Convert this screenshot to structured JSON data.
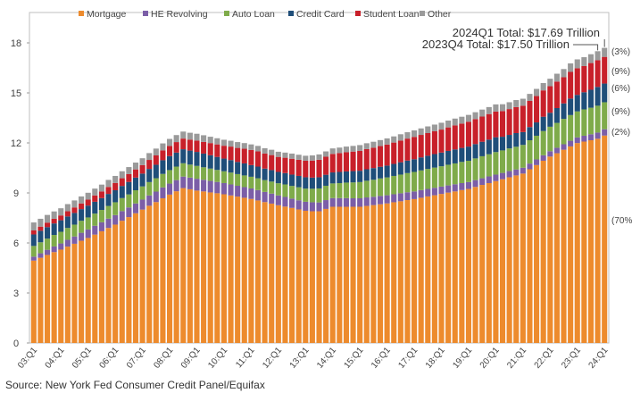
{
  "chart_data": {
    "type": "bar",
    "stacked": true,
    "title": "",
    "xlabel": "",
    "ylabel": "",
    "ylim": [
      0,
      18
    ],
    "yticks": [
      0,
      3,
      6,
      9,
      12,
      15,
      18
    ],
    "grid": false,
    "legend": "top",
    "x_tick_labels": [
      "03:Q1",
      "04:Q1",
      "05:Q1",
      "06:Q1",
      "07:Q1",
      "08:Q1",
      "09:Q1",
      "10:Q1",
      "11:Q1",
      "12:Q1",
      "13:Q1",
      "14:Q1",
      "15:Q1",
      "16:Q1",
      "17:Q1",
      "18:Q1",
      "19:Q1",
      "20:Q1",
      "21:Q1",
      "22:Q1",
      "23:Q1",
      "24:Q1"
    ],
    "quarters_start": "03:Q1",
    "series": [
      {
        "name": "Mortgage",
        "color": "#ed8b2d",
        "share_label": "(70%)",
        "values": [
          4.94,
          5.11,
          5.28,
          5.45,
          5.6,
          5.78,
          5.95,
          6.13,
          6.3,
          6.5,
          6.7,
          6.9,
          7.1,
          7.33,
          7.55,
          7.78,
          8.0,
          8.23,
          8.45,
          8.68,
          8.9,
          9.1,
          9.29,
          9.22,
          9.14,
          9.09,
          9.03,
          8.98,
          8.92,
          8.85,
          8.78,
          8.71,
          8.64,
          8.55,
          8.45,
          8.36,
          8.26,
          8.18,
          8.1,
          8.01,
          7.93,
          7.9,
          7.9,
          8.04,
          8.17,
          8.17,
          8.17,
          8.17,
          8.17,
          8.22,
          8.27,
          8.32,
          8.37,
          8.44,
          8.5,
          8.57,
          8.63,
          8.71,
          8.79,
          8.86,
          8.94,
          9.02,
          9.09,
          9.17,
          9.24,
          9.36,
          9.48,
          9.59,
          9.71,
          9.82,
          9.94,
          10.05,
          10.16,
          10.42,
          10.67,
          10.93,
          11.18,
          11.38,
          11.59,
          11.79,
          11.99,
          12.08,
          12.16,
          12.25,
          12.44
        ]
      },
      {
        "name": "HE Revolving",
        "color": "#7b5ea7",
        "share_label": "(2%)",
        "values": [
          0.24,
          0.27,
          0.31,
          0.34,
          0.37,
          0.41,
          0.44,
          0.48,
          0.51,
          0.53,
          0.54,
          0.56,
          0.57,
          0.58,
          0.58,
          0.59,
          0.6,
          0.62,
          0.63,
          0.65,
          0.66,
          0.67,
          0.69,
          0.7,
          0.71,
          0.7,
          0.69,
          0.68,
          0.67,
          0.66,
          0.65,
          0.64,
          0.63,
          0.62,
          0.61,
          0.6,
          0.59,
          0.58,
          0.56,
          0.55,
          0.54,
          0.54,
          0.53,
          0.53,
          0.52,
          0.52,
          0.52,
          0.51,
          0.51,
          0.51,
          0.5,
          0.5,
          0.49,
          0.48,
          0.48,
          0.47,
          0.46,
          0.46,
          0.45,
          0.45,
          0.44,
          0.43,
          0.43,
          0.42,
          0.41,
          0.41,
          0.4,
          0.4,
          0.39,
          0.38,
          0.37,
          0.36,
          0.35,
          0.34,
          0.34,
          0.33,
          0.32,
          0.33,
          0.33,
          0.34,
          0.34,
          0.35,
          0.36,
          0.37,
          0.38
        ]
      },
      {
        "name": "Auto Loan",
        "color": "#7fab4a",
        "share_label": "(9%)",
        "values": [
          0.64,
          0.66,
          0.67,
          0.69,
          0.7,
          0.71,
          0.71,
          0.72,
          0.72,
          0.73,
          0.74,
          0.76,
          0.77,
          0.78,
          0.78,
          0.79,
          0.79,
          0.8,
          0.8,
          0.81,
          0.81,
          0.81,
          0.8,
          0.78,
          0.77,
          0.75,
          0.74,
          0.72,
          0.71,
          0.71,
          0.7,
          0.7,
          0.7,
          0.71,
          0.71,
          0.72,
          0.73,
          0.75,
          0.76,
          0.78,
          0.79,
          0.81,
          0.84,
          0.86,
          0.88,
          0.9,
          0.93,
          0.95,
          0.97,
          1.0,
          1.02,
          1.05,
          1.07,
          1.1,
          1.12,
          1.15,
          1.17,
          1.18,
          1.2,
          1.21,
          1.22,
          1.24,
          1.25,
          1.27,
          1.28,
          1.3,
          1.32,
          1.33,
          1.35,
          1.35,
          1.36,
          1.36,
          1.37,
          1.4,
          1.42,
          1.45,
          1.47,
          1.49,
          1.52,
          1.54,
          1.56,
          1.58,
          1.59,
          1.61,
          1.62
        ]
      },
      {
        "name": "Credit Card",
        "color": "#1f4e79",
        "share_label": "(6%)",
        "values": [
          0.69,
          0.69,
          0.69,
          0.69,
          0.69,
          0.69,
          0.7,
          0.7,
          0.71,
          0.71,
          0.71,
          0.72,
          0.72,
          0.73,
          0.75,
          0.76,
          0.77,
          0.79,
          0.81,
          0.82,
          0.84,
          0.84,
          0.84,
          0.84,
          0.84,
          0.82,
          0.8,
          0.78,
          0.76,
          0.75,
          0.73,
          0.72,
          0.7,
          0.7,
          0.69,
          0.69,
          0.68,
          0.68,
          0.68,
          0.68,
          0.68,
          0.67,
          0.67,
          0.66,
          0.66,
          0.67,
          0.67,
          0.68,
          0.68,
          0.69,
          0.7,
          0.7,
          0.71,
          0.72,
          0.74,
          0.75,
          0.76,
          0.78,
          0.79,
          0.81,
          0.82,
          0.83,
          0.84,
          0.84,
          0.85,
          0.86,
          0.87,
          0.88,
          0.89,
          0.82,
          0.81,
          0.82,
          0.77,
          0.79,
          0.8,
          0.86,
          0.84,
          0.89,
          0.93,
          0.99,
          0.99,
          1.03,
          1.08,
          1.13,
          1.12
        ]
      },
      {
        "name": "Student Loan",
        "color": "#c8202a",
        "share_label": "(9%)",
        "values": [
          0.24,
          0.25,
          0.27,
          0.28,
          0.29,
          0.31,
          0.33,
          0.34,
          0.36,
          0.38,
          0.4,
          0.42,
          0.44,
          0.46,
          0.47,
          0.49,
          0.51,
          0.54,
          0.56,
          0.59,
          0.61,
          0.63,
          0.64,
          0.66,
          0.68,
          0.7,
          0.73,
          0.75,
          0.77,
          0.81,
          0.84,
          0.88,
          0.91,
          0.91,
          0.9,
          0.9,
          0.9,
          0.92,
          0.95,
          0.97,
          0.99,
          1.02,
          1.05,
          1.08,
          1.11,
          1.13,
          1.15,
          1.17,
          1.19,
          1.21,
          1.22,
          1.24,
          1.26,
          1.28,
          1.3,
          1.32,
          1.34,
          1.35,
          1.36,
          1.37,
          1.38,
          1.41,
          1.44,
          1.46,
          1.49,
          1.5,
          1.51,
          1.53,
          1.54,
          1.54,
          1.55,
          1.56,
          1.58,
          1.57,
          1.58,
          1.58,
          1.59,
          1.59,
          1.57,
          1.6,
          1.6,
          1.57,
          1.6,
          1.6,
          1.6
        ]
      },
      {
        "name": "Other",
        "color": "#9a9a9a",
        "share_label": "(3%)",
        "values": [
          0.48,
          0.47,
          0.46,
          0.44,
          0.43,
          0.43,
          0.42,
          0.42,
          0.41,
          0.41,
          0.41,
          0.42,
          0.42,
          0.42,
          0.42,
          0.41,
          0.41,
          0.41,
          0.41,
          0.42,
          0.42,
          0.42,
          0.42,
          0.41,
          0.41,
          0.4,
          0.38,
          0.37,
          0.36,
          0.35,
          0.35,
          0.34,
          0.33,
          0.33,
          0.32,
          0.32,
          0.31,
          0.31,
          0.31,
          0.3,
          0.3,
          0.31,
          0.32,
          0.32,
          0.33,
          0.33,
          0.34,
          0.34,
          0.35,
          0.35,
          0.36,
          0.36,
          0.37,
          0.37,
          0.38,
          0.38,
          0.39,
          0.39,
          0.4,
          0.4,
          0.41,
          0.41,
          0.41,
          0.41,
          0.41,
          0.41,
          0.42,
          0.42,
          0.43,
          0.41,
          0.41,
          0.42,
          0.42,
          0.42,
          0.43,
          0.44,
          0.45,
          0.47,
          0.49,
          0.51,
          0.53,
          0.53,
          0.53,
          0.54,
          0.54
        ]
      }
    ],
    "annotations": [
      {
        "text": "2024Q1 Total: $17.69 Trillion",
        "quarter_index": 84
      },
      {
        "text": "2023Q4 Total: $17.50 Trillion",
        "quarter_index": 83
      }
    ]
  },
  "source": "Source: New York Fed Consumer Credit Panel/Equifax"
}
